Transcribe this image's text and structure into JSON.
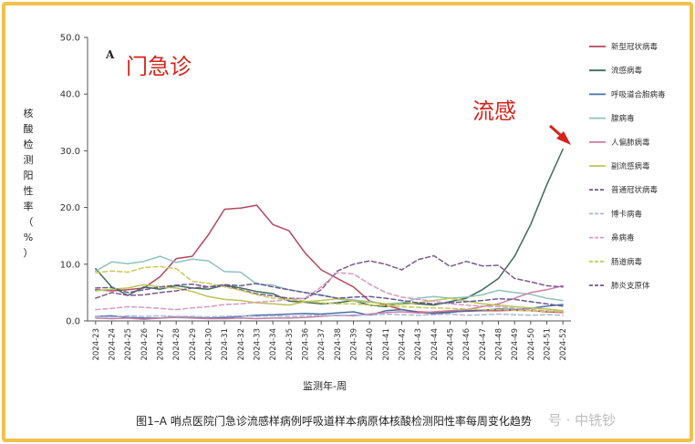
{
  "panel_letter": "A",
  "annotations": {
    "clinic_label": "门急诊",
    "flu_label": "流感"
  },
  "caption": "图1–A 哨点医院门急诊流感样病例呼吸道样本病原体核酸检测阳性率每周变化趋势",
  "watermark": "号 · 中铣钞",
  "colors": {
    "frame": "#f2c14c",
    "annotation": "#d4241c"
  },
  "chart_data": {
    "type": "line",
    "title": "",
    "xlabel": "监测年-周",
    "ylabel": "核酸检测阳性率（%）",
    "ylim": [
      0,
      50
    ],
    "yticks": [
      "0.0",
      "10.0",
      "20.0",
      "30.0",
      "40.0",
      "50.0"
    ],
    "grid": false,
    "legend_position": "right",
    "categories": [
      "2024-23",
      "2024-24",
      "2024-25",
      "2024-26",
      "2024-27",
      "2024-28",
      "2024-29",
      "2024-30",
      "2024-31",
      "2024-32",
      "2024-33",
      "2024-34",
      "2024-35",
      "2024-36",
      "2024-37",
      "2024-38",
      "2024-39",
      "2024-40",
      "2024-41",
      "2024-42",
      "2024-43",
      "2024-44",
      "2024-45",
      "2024-46",
      "2024-47",
      "2024-48",
      "2024-49",
      "2024-50",
      "2024-51",
      "2024-52"
    ],
    "series": [
      {
        "name": "新型冠状病毒",
        "color": "#b5475c",
        "dashed": false,
        "values": [
          5.5,
          5.3,
          5.5,
          5.8,
          7.8,
          11.0,
          11.4,
          15.2,
          19.7,
          19.9,
          20.4,
          17.0,
          15.9,
          12.0,
          9.0,
          7.5,
          6.0,
          3.5,
          2.8,
          2.0,
          1.6,
          1.5,
          1.6,
          1.7,
          1.8,
          1.8,
          1.9,
          1.8,
          1.6,
          1.5
        ]
      },
      {
        "name": "流感病毒",
        "color": "#3f6b58",
        "dashed": false,
        "values": [
          9.2,
          6.0,
          4.5,
          6.0,
          5.6,
          6.2,
          5.8,
          5.6,
          6.3,
          5.8,
          5.2,
          4.8,
          3.5,
          3.3,
          3.0,
          3.2,
          3.6,
          2.8,
          2.5,
          3.2,
          3.0,
          2.8,
          3.4,
          4.0,
          5.5,
          7.5,
          11.4,
          17.0,
          24.0,
          30.3
        ]
      },
      {
        "name": "呼吸道合胞病毒",
        "color": "#4a6fa5",
        "dashed": false,
        "values": [
          0.8,
          0.9,
          0.6,
          0.5,
          0.5,
          0.7,
          0.6,
          0.5,
          0.6,
          0.8,
          1.0,
          1.1,
          1.2,
          1.3,
          1.2,
          1.4,
          1.6,
          1.0,
          1.8,
          2.0,
          1.5,
          1.3,
          1.5,
          1.8,
          1.9,
          2.1,
          2.0,
          2.2,
          2.6,
          2.9
        ]
      },
      {
        "name": "腺病毒",
        "color": "#8fc2ba",
        "dashed": false,
        "values": [
          8.8,
          10.4,
          10.1,
          10.5,
          11.4,
          10.3,
          10.9,
          10.6,
          8.7,
          8.6,
          6.5,
          6.3,
          5.5,
          5.0,
          4.6,
          4.0,
          3.7,
          3.4,
          3.0,
          3.2,
          4.0,
          4.3,
          4.0,
          4.2,
          4.6,
          5.4,
          5.0,
          4.7,
          4.0,
          3.6
        ]
      },
      {
        "name": "人偏肺病毒",
        "color": "#c97fa3",
        "dashed": false,
        "values": [
          0.5,
          0.4,
          0.5,
          0.3,
          0.5,
          0.6,
          0.5,
          0.4,
          0.4,
          0.5,
          0.4,
          0.5,
          0.5,
          0.6,
          0.8,
          1.0,
          0.9,
          1.2,
          1.5,
          1.6,
          1.4,
          1.6,
          1.8,
          2.0,
          2.5,
          3.0,
          4.0,
          5.0,
          5.5,
          6.2
        ]
      },
      {
        "name": "副流感病毒",
        "color": "#b9c455",
        "dashed": false,
        "values": [
          5.3,
          5.6,
          5.8,
          6.4,
          6.0,
          5.8,
          5.2,
          4.3,
          3.8,
          3.6,
          3.2,
          3.0,
          2.8,
          3.4,
          3.6,
          3.9,
          3.5,
          3.3,
          3.0,
          2.9,
          3.2,
          3.6,
          4.0,
          3.5,
          3.0,
          2.8,
          2.5,
          2.3,
          2.1,
          1.8
        ]
      },
      {
        "name": "普通冠状病毒",
        "color": "#7a5a8c",
        "dashed": true,
        "values": [
          4.0,
          5.0,
          4.5,
          4.6,
          5.0,
          5.3,
          5.8,
          6.0,
          6.2,
          5.5,
          4.8,
          4.4,
          4.0,
          3.9,
          5.5,
          8.8,
          10.0,
          10.6,
          10.0,
          9.0,
          10.8,
          11.5,
          9.6,
          10.5,
          9.7,
          9.8,
          7.5,
          6.9,
          6.2,
          6.0
        ]
      },
      {
        "name": "博卡病毒",
        "color": "#a8b8d8",
        "dashed": true,
        "values": [
          0.8,
          0.7,
          0.9,
          0.8,
          0.9,
          0.8,
          0.8,
          0.7,
          0.8,
          0.9,
          0.8,
          0.9,
          0.8,
          0.9,
          1.0,
          0.9,
          1.1,
          1.0,
          1.2,
          1.1,
          1.0,
          1.1,
          1.2,
          1.0,
          1.1,
          1.2,
          1.1,
          1.0,
          1.1,
          1.0
        ]
      },
      {
        "name": "鼻病毒",
        "color": "#d99ac0",
        "dashed": true,
        "values": [
          2.0,
          2.2,
          2.5,
          2.4,
          2.2,
          2.0,
          2.3,
          2.5,
          2.9,
          3.0,
          3.3,
          3.5,
          3.8,
          4.0,
          6.0,
          8.5,
          8.3,
          6.5,
          5.0,
          4.2,
          3.8,
          3.5,
          3.0,
          2.8,
          2.6,
          2.5,
          2.2,
          2.0,
          1.8,
          1.6
        ]
      },
      {
        "name": "肠道病毒",
        "color": "#c9c95a",
        "dashed": true,
        "values": [
          8.5,
          8.8,
          8.6,
          9.4,
          9.6,
          9.2,
          7.0,
          6.6,
          6.0,
          5.4,
          4.6,
          4.0,
          3.8,
          3.5,
          3.2,
          3.0,
          3.0,
          2.8,
          2.7,
          2.5,
          2.4,
          2.3,
          2.2,
          2.1,
          2.0,
          2.0,
          1.9,
          1.8,
          1.7,
          1.6
        ]
      },
      {
        "name": "肺炎支原体",
        "color": "#6a5a94",
        "dashed": true,
        "values": [
          5.8,
          5.9,
          5.0,
          5.5,
          6.0,
          6.3,
          6.5,
          6.0,
          6.4,
          6.2,
          6.6,
          6.0,
          5.5,
          5.0,
          4.5,
          4.0,
          4.2,
          4.3,
          4.0,
          3.6,
          3.2,
          3.0,
          3.2,
          3.4,
          3.6,
          3.9,
          3.8,
          3.4,
          3.0,
          2.6
        ]
      }
    ]
  }
}
